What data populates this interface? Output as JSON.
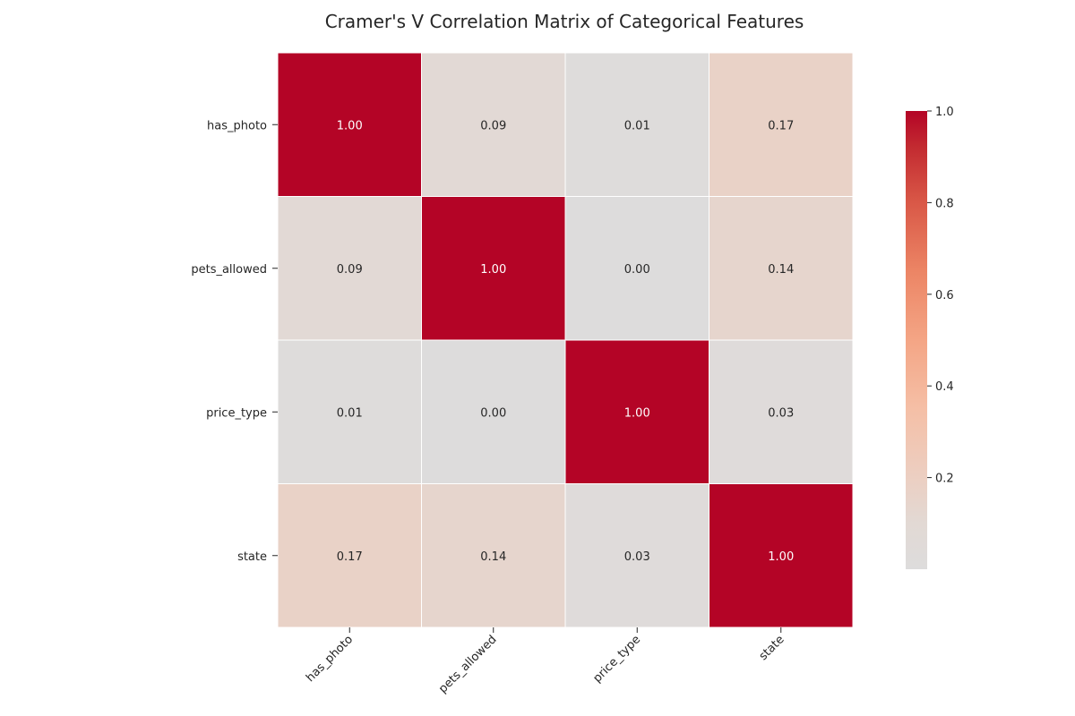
{
  "chart_data": {
    "type": "heatmap",
    "title": "Cramer's V Correlation Matrix of Categorical Features",
    "rows": [
      "has_photo",
      "pets_allowed",
      "price_type",
      "state"
    ],
    "columns": [
      "has_photo",
      "pets_allowed",
      "price_type",
      "state"
    ],
    "values": [
      [
        1.0,
        0.09,
        0.01,
        0.17
      ],
      [
        0.09,
        1.0,
        0.0,
        0.14
      ],
      [
        0.01,
        0.0,
        1.0,
        0.03
      ],
      [
        0.17,
        0.14,
        0.03,
        1.0
      ]
    ],
    "annotation_format": "2 decimals",
    "colormap": "coolwarm (centered, light gray at low values to dark red at 1.0)",
    "colorbar": {
      "range": [
        0.0,
        1.0
      ],
      "ticks": [
        "0.2",
        "0.4",
        "0.6",
        "0.8",
        "1.0"
      ],
      "tick_values": [
        0.2,
        0.4,
        0.6,
        0.8,
        1.0
      ]
    },
    "colors": {
      "low": "#dddcdc",
      "max": "#b40426",
      "cell_border": "#ffffff",
      "text_dark": "#262626",
      "text_light": "#ffffff"
    },
    "grid": false
  }
}
